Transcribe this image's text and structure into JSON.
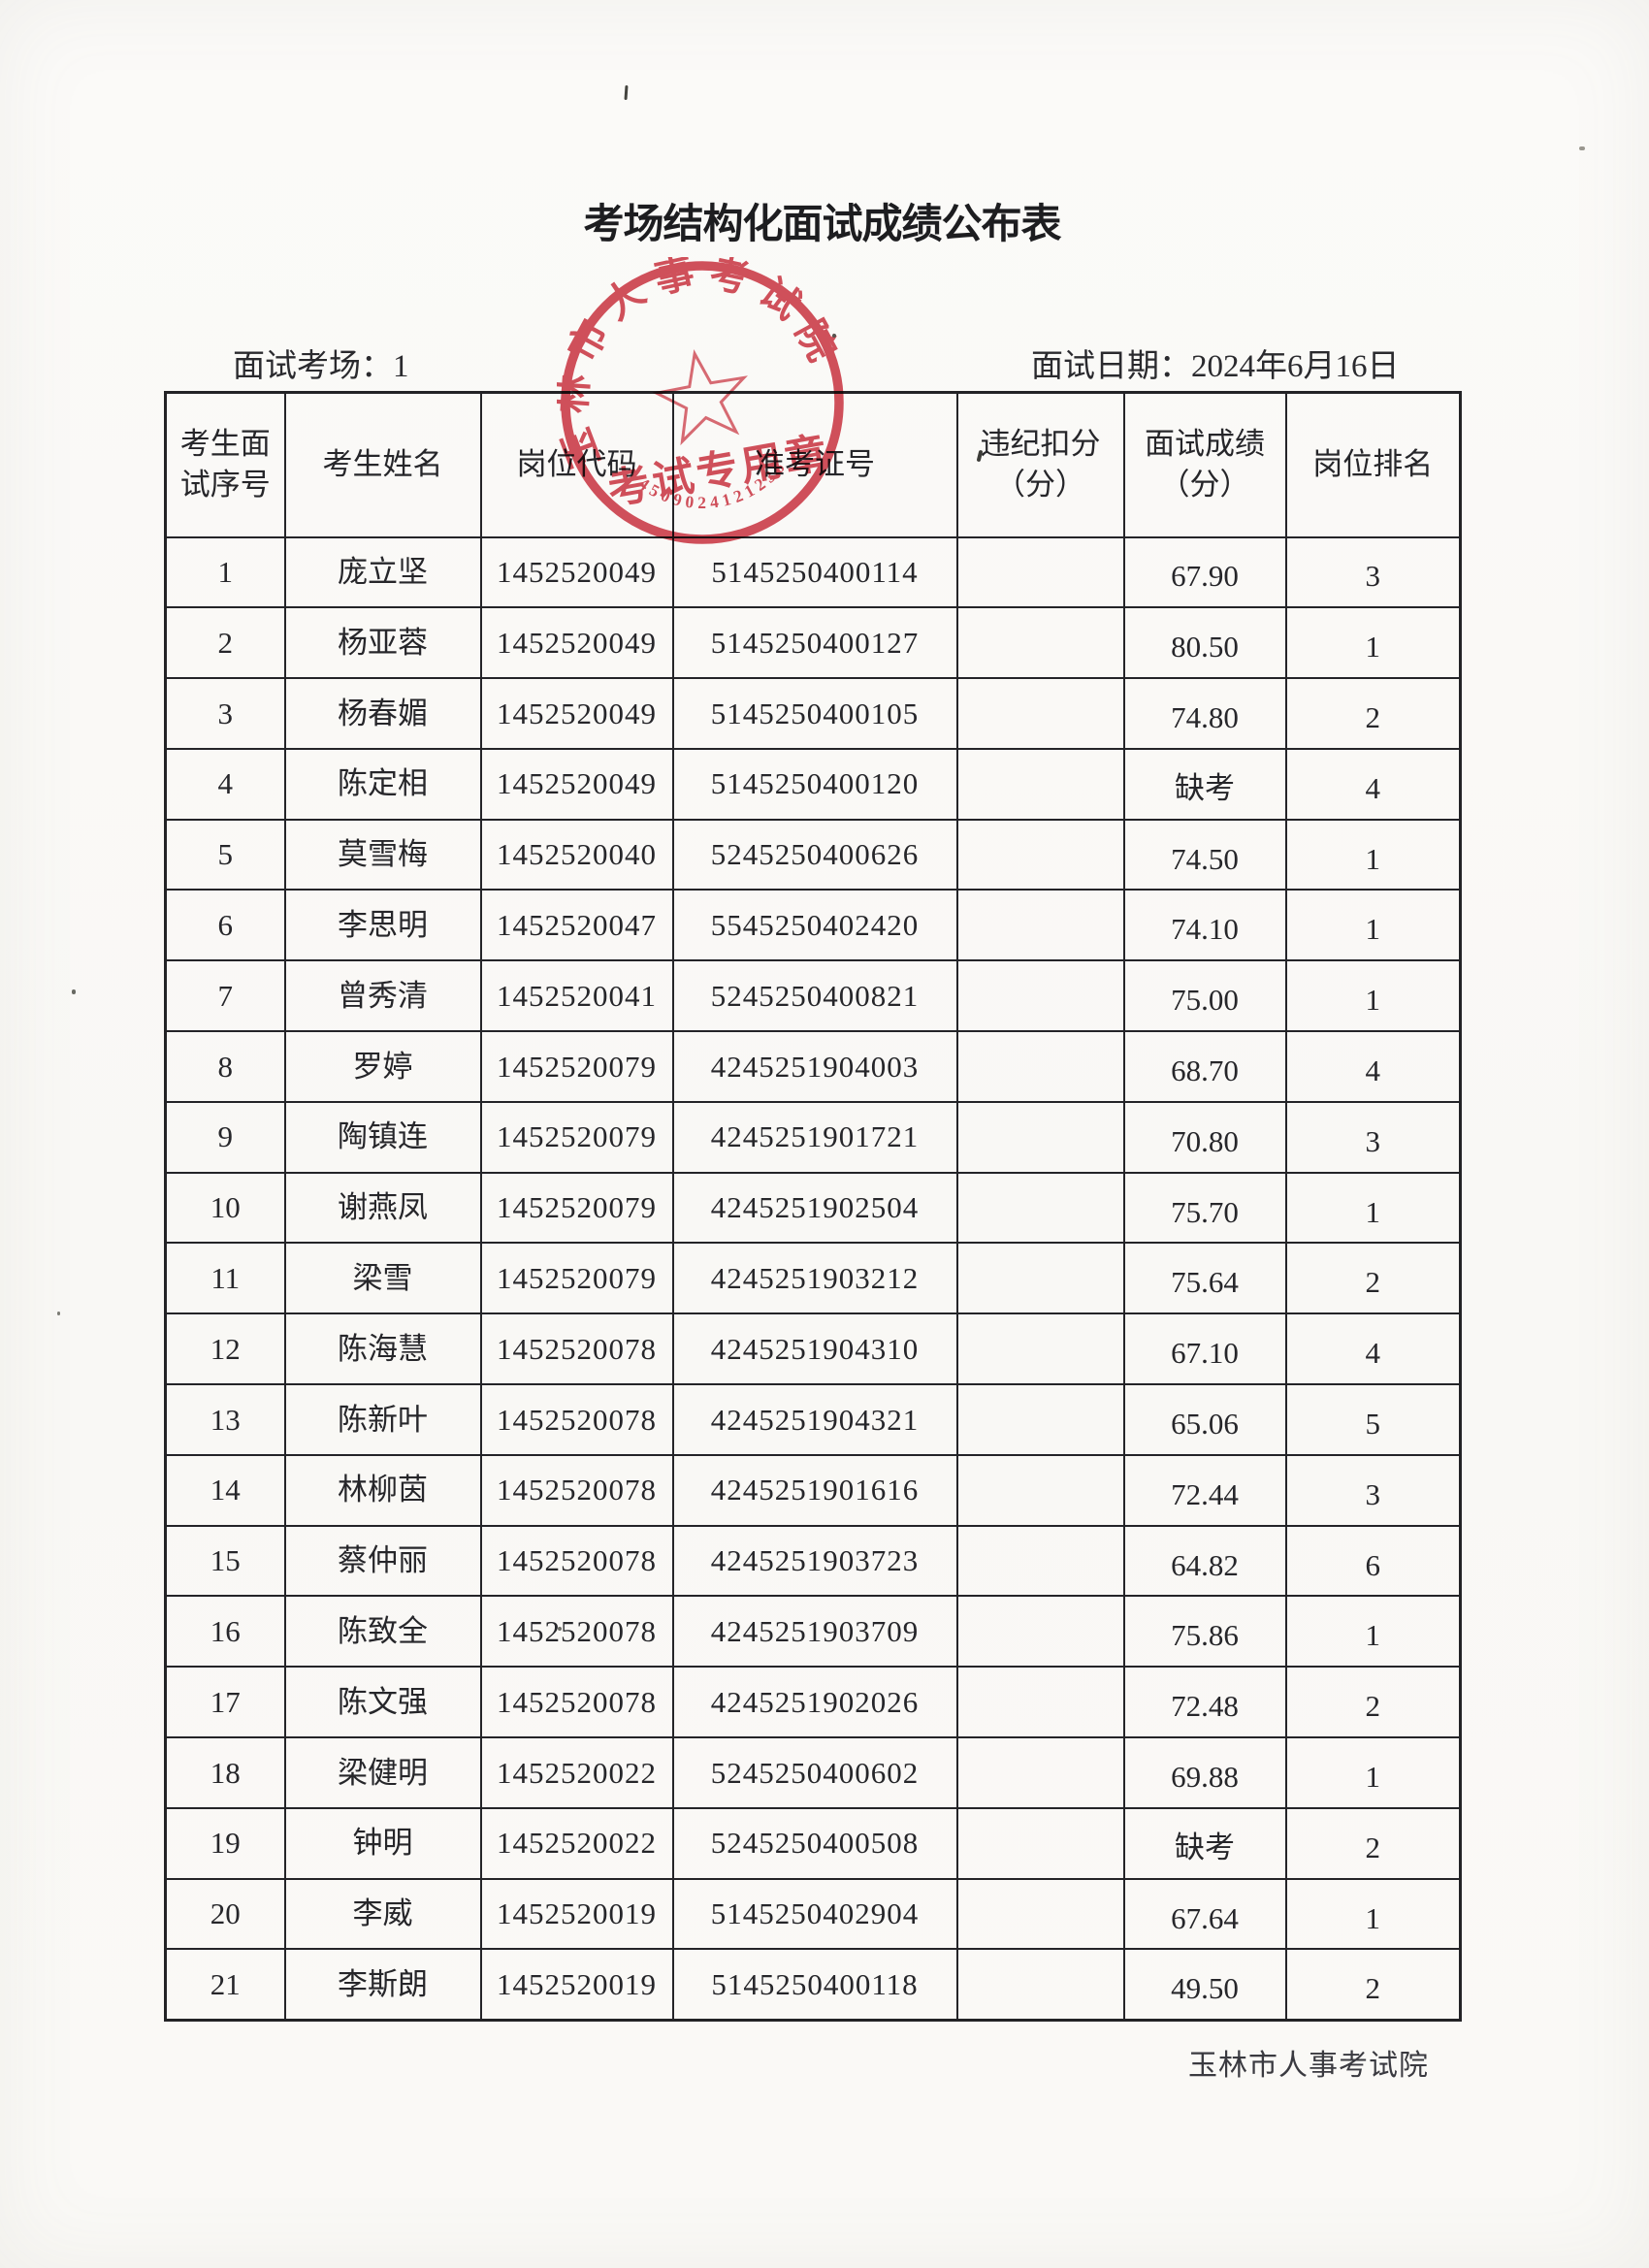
{
  "page": {
    "title": "考场结构化面试成绩公布表",
    "venue": "面试考场：1",
    "date": "面试日期：2024年6月16日",
    "footer": "玉林市人事考试院"
  },
  "stamp": {
    "ring_text": "玉林市人事考试院",
    "label": "考试专用章",
    "serial": "4509024121236",
    "color": "#cf3e4b"
  },
  "table": {
    "headers": [
      "考生面试序号",
      "考生姓名",
      "岗位代码",
      "准考证号",
      "违纪扣分（分）",
      "面试成绩（分）",
      "岗位排名"
    ],
    "rows": [
      [
        "1",
        "庞立坚",
        "1452520049",
        "5145250400114",
        "",
        "67.90",
        "3"
      ],
      [
        "2",
        "杨亚蓉",
        "1452520049",
        "5145250400127",
        "",
        "80.50",
        "1"
      ],
      [
        "3",
        "杨春媚",
        "1452520049",
        "5145250400105",
        "",
        "74.80",
        "2"
      ],
      [
        "4",
        "陈定相",
        "1452520049",
        "5145250400120",
        "",
        "缺考",
        "4"
      ],
      [
        "5",
        "莫雪梅",
        "1452520040",
        "5245250400626",
        "",
        "74.50",
        "1"
      ],
      [
        "6",
        "李思明",
        "1452520047",
        "5545250402420",
        "",
        "74.10",
        "1"
      ],
      [
        "7",
        "曾秀清",
        "1452520041",
        "5245250400821",
        "",
        "75.00",
        "1"
      ],
      [
        "8",
        "罗婷",
        "1452520079",
        "4245251904003",
        "",
        "68.70",
        "4"
      ],
      [
        "9",
        "陶镇连",
        "1452520079",
        "4245251901721",
        "",
        "70.80",
        "3"
      ],
      [
        "10",
        "谢燕凤",
        "1452520079",
        "4245251902504",
        "",
        "75.70",
        "1"
      ],
      [
        "11",
        "梁雪",
        "1452520079",
        "4245251903212",
        "",
        "75.64",
        "2"
      ],
      [
        "12",
        "陈海慧",
        "1452520078",
        "4245251904310",
        "",
        "67.10",
        "4"
      ],
      [
        "13",
        "陈新叶",
        "1452520078",
        "4245251904321",
        "",
        "65.06",
        "5"
      ],
      [
        "14",
        "林柳茵",
        "1452520078",
        "4245251901616",
        "",
        "72.44",
        "3"
      ],
      [
        "15",
        "蔡仲丽",
        "1452520078",
        "4245251903723",
        "",
        "64.82",
        "6"
      ],
      [
        "16",
        "陈致全",
        "1452520078",
        "4245251903709",
        "",
        "75.86",
        "1"
      ],
      [
        "17",
        "陈文强",
        "1452520078",
        "4245251902026",
        "",
        "72.48",
        "2"
      ],
      [
        "18",
        "梁健明",
        "1452520022",
        "5245250400602",
        "",
        "69.88",
        "1"
      ],
      [
        "19",
        "钟明",
        "1452520022",
        "5245250400508",
        "",
        "缺考",
        "2"
      ],
      [
        "20",
        "李威",
        "1452520019",
        "5145250402904",
        "",
        "67.64",
        "1"
      ],
      [
        "21",
        "李斯朗",
        "1452520019",
        "5145250400118",
        "",
        "49.50",
        "2"
      ]
    ]
  }
}
